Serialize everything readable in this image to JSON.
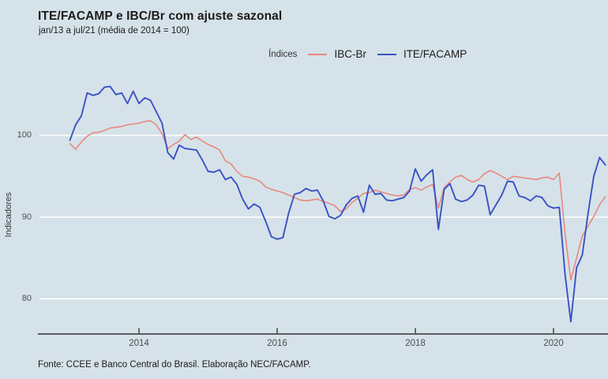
{
  "title": "ITE/FACAMP e IBC/Br com ajuste sazonal",
  "subtitle": "jan/13 a jul/21 (média de 2014 = 100)",
  "footer": "Fonte: CCEE e Banco Central do Brasil. Elaboração NEC/FACAMP.",
  "legend": {
    "title": "Índices",
    "items": [
      {
        "label": "IBC-Br",
        "color": "#e8897e"
      },
      {
        "label": "ITE/FACAMP",
        "color": "#3a52c4"
      }
    ]
  },
  "colors": {
    "background": "#d6e2e9",
    "grid": "#ffffff",
    "axis": "#333333",
    "ibc_br": "#e8897e",
    "ite_facamp": "#3a52c4"
  },
  "chart_data": {
    "type": "line",
    "title": "ITE/FACAMP e IBC/Br com ajuste sazonal",
    "subtitle": "jan/13 a jul/21 (média de 2014 = 100)",
    "xlabel": "",
    "ylabel": "Indicadores",
    "x_start": "jan/2013",
    "frequency": "monthly",
    "visible_end": "out/2020",
    "ylim": [
      76,
      107
    ],
    "grid": "horizontal",
    "legend_position": "top",
    "y_ticks": [
      100,
      90,
      80
    ],
    "x_ticks": [
      {
        "label": "2014",
        "month_index": 12
      },
      {
        "label": "2016",
        "month_index": 36
      },
      {
        "label": "2018",
        "month_index": 60
      },
      {
        "label": "2020",
        "month_index": 84
      }
    ],
    "series": [
      {
        "name": "IBC-Br",
        "color": "#e8897e",
        "values": [
          99.0,
          98.3,
          99.2,
          99.9,
          100.3,
          100.4,
          100.6,
          100.9,
          101.0,
          101.1,
          101.3,
          101.4,
          101.5,
          101.7,
          101.8,
          101.3,
          100.2,
          98.4,
          98.9,
          99.3,
          100.1,
          99.5,
          99.8,
          99.3,
          98.9,
          98.6,
          98.2,
          96.9,
          96.5,
          95.6,
          95.0,
          94.9,
          94.7,
          94.4,
          93.7,
          93.4,
          93.2,
          93.0,
          92.7,
          92.4,
          92.1,
          92.0,
          92.1,
          92.2,
          91.9,
          91.7,
          91.4,
          90.7,
          91.0,
          91.8,
          92.3,
          92.9,
          93.0,
          93.3,
          93.1,
          92.9,
          92.7,
          92.6,
          92.7,
          93.4,
          93.6,
          93.3,
          93.7,
          94.0,
          91.1,
          93.6,
          94.3,
          94.9,
          95.1,
          94.6,
          94.3,
          94.6,
          95.3,
          95.7,
          95.4,
          95.0,
          94.6,
          95.0,
          94.9,
          94.8,
          94.7,
          94.6,
          94.8,
          94.9,
          94.6,
          95.4,
          88.0,
          82.3,
          85.0,
          87.7,
          88.9,
          90.1,
          91.5,
          92.5
        ]
      },
      {
        "name": "ITE/FACAMP",
        "color": "#3a52c4",
        "values": [
          99.4,
          101.3,
          102.4,
          105.2,
          104.9,
          105.1,
          105.9,
          106.0,
          105.0,
          105.2,
          103.9,
          105.4,
          103.9,
          104.6,
          104.3,
          102.9,
          101.5,
          97.9,
          97.1,
          98.8,
          98.4,
          98.3,
          98.2,
          97.0,
          95.6,
          95.5,
          95.8,
          94.6,
          94.9,
          94.0,
          92.2,
          91.0,
          91.6,
          91.2,
          89.5,
          87.6,
          87.3,
          87.5,
          90.5,
          92.8,
          93.0,
          93.5,
          93.2,
          93.3,
          92.0,
          90.1,
          89.8,
          90.2,
          91.5,
          92.3,
          92.6,
          90.6,
          93.9,
          92.8,
          92.9,
          92.1,
          92.0,
          92.2,
          92.4,
          93.2,
          95.9,
          94.4,
          95.2,
          95.8,
          88.5,
          93.4,
          94.1,
          92.2,
          91.9,
          92.1,
          92.7,
          93.9,
          93.8,
          90.3,
          91.5,
          92.7,
          94.4,
          94.3,
          92.6,
          92.4,
          92.0,
          92.6,
          92.4,
          91.4,
          91.1,
          91.2,
          83.0,
          77.2,
          83.8,
          85.4,
          90.5,
          95.0,
          97.3,
          96.4
        ]
      }
    ]
  }
}
